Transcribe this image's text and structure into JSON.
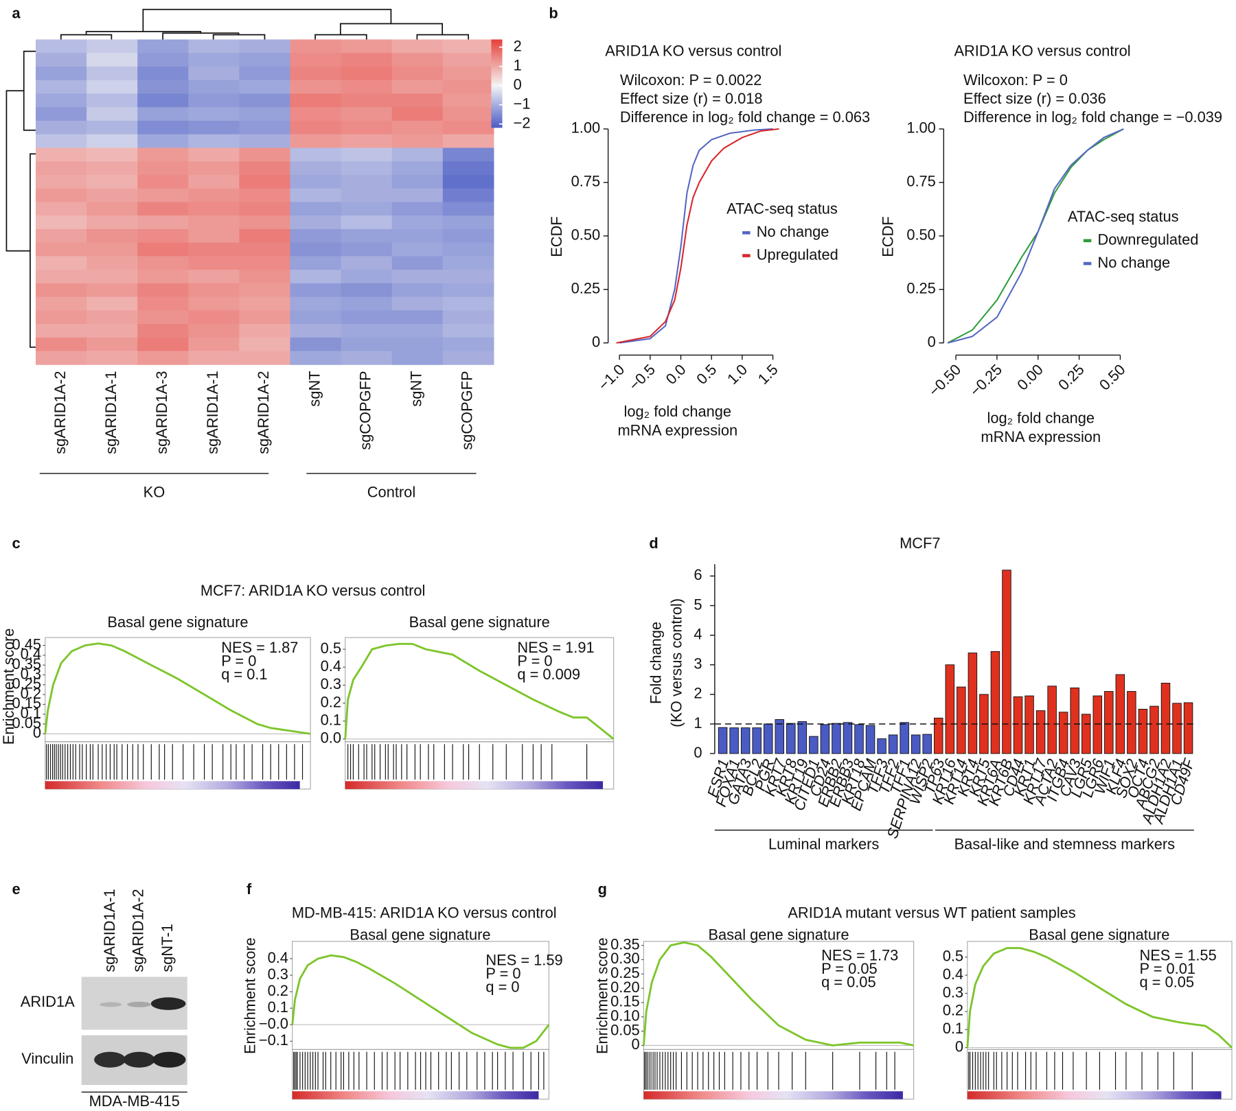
{
  "chart_data": [
    {
      "type": "heatmap",
      "panel": "a",
      "categories": [
        "sgARID1A-2",
        "sgARID1A-1",
        "sgARID1A-3",
        "sgARID1A-1",
        "sgARID1A-2",
        "sgNT",
        "sgCOPGFP",
        "sgNT",
        "sgCOPGFP"
      ],
      "groups": [
        "KO",
        "Control"
      ],
      "colorscale": [
        "#4a5bc4",
        "#f4f4f4",
        "#e6403a"
      ],
      "clim": [
        -2.2,
        2.4
      ],
      "cticks": [
        2,
        1,
        0,
        {
          "value": -1,
          "label": "−1"
        },
        {
          "value": -2,
          "label": "−2"
        }
      ],
      "values": [
        [
          -0.8,
          -0.6,
          -1.2,
          -0.9,
          -1.0,
          1.3,
          1.2,
          1.0,
          0.9
        ],
        [
          -1.0,
          -0.4,
          -1.3,
          -1.1,
          -1.2,
          1.4,
          1.5,
          1.3,
          1.1
        ],
        [
          -1.2,
          -0.7,
          -1.5,
          -1.0,
          -1.3,
          1.5,
          1.6,
          1.4,
          1.2
        ],
        [
          -0.9,
          -0.5,
          -1.4,
          -1.2,
          -1.1,
          1.3,
          1.4,
          1.2,
          1.3
        ],
        [
          -1.1,
          -0.8,
          -1.6,
          -1.3,
          -1.4,
          1.6,
          1.5,
          1.5,
          1.2
        ],
        [
          -1.3,
          -0.6,
          -1.2,
          -1.1,
          -1.2,
          1.4,
          1.3,
          1.6,
          1.3
        ],
        [
          -1.0,
          -0.9,
          -1.5,
          -1.4,
          -1.3,
          1.5,
          1.4,
          1.3,
          1.4
        ],
        [
          -0.7,
          -0.5,
          -1.1,
          -0.9,
          -1.0,
          1.2,
          1.1,
          1.2,
          1.0
        ],
        [
          0.9,
          0.8,
          1.2,
          1.0,
          1.3,
          -0.8,
          -0.7,
          -0.9,
          -1.6
        ],
        [
          1.1,
          1.0,
          1.3,
          1.2,
          1.5,
          -1.0,
          -0.9,
          -1.1,
          -1.8
        ],
        [
          1.0,
          0.9,
          1.4,
          1.1,
          1.6,
          -1.1,
          -1.0,
          -1.2,
          -1.9
        ],
        [
          1.2,
          1.1,
          1.2,
          1.3,
          1.4,
          -0.9,
          -1.0,
          -1.0,
          -1.7
        ],
        [
          1.0,
          1.2,
          1.5,
          1.4,
          1.5,
          -1.2,
          -1.1,
          -1.3,
          -1.5
        ],
        [
          0.8,
          1.0,
          1.1,
          1.2,
          1.3,
          -1.0,
          -0.8,
          -1.1,
          -1.2
        ],
        [
          1.1,
          1.3,
          1.4,
          1.2,
          1.6,
          -1.3,
          -1.2,
          -1.2,
          -1.3
        ],
        [
          1.2,
          1.2,
          1.6,
          1.5,
          1.5,
          -1.4,
          -1.3,
          -1.1,
          -1.2
        ],
        [
          0.9,
          1.1,
          1.3,
          1.4,
          1.4,
          -1.2,
          -1.0,
          -1.3,
          -1.1
        ],
        [
          1.0,
          1.0,
          1.2,
          1.1,
          1.3,
          -0.9,
          -1.1,
          -1.0,
          -1.0
        ],
        [
          1.3,
          1.2,
          1.5,
          1.3,
          1.2,
          -1.3,
          -1.4,
          -1.2,
          -1.1
        ],
        [
          1.1,
          0.9,
          1.4,
          1.2,
          1.1,
          -1.1,
          -1.2,
          -1.0,
          -0.9
        ],
        [
          1.2,
          1.1,
          1.3,
          1.4,
          1.2,
          -1.2,
          -1.3,
          -1.3,
          -1.0
        ],
        [
          1.0,
          1.0,
          1.5,
          1.3,
          1.0,
          -1.0,
          -1.1,
          -1.1,
          -0.9
        ],
        [
          1.4,
          1.2,
          1.6,
          1.2,
          0.9,
          -1.4,
          -1.2,
          -1.2,
          -1.1
        ],
        [
          1.1,
          1.0,
          1.2,
          1.0,
          1.0,
          -1.1,
          -1.0,
          -1.2,
          -1.0
        ]
      ]
    },
    {
      "type": "line",
      "panel": "b",
      "title": "ARID1A KO versus control",
      "annotations": [
        "Wilcoxon: P = 0.0022",
        "Effect size (r) = 0.018",
        "Difference in log₂ fold change = 0.063"
      ],
      "xlabel": [
        "log₂ fold change",
        "mRNA expression"
      ],
      "ylabel": "ECDF",
      "legend_title": "ATAC-seq status",
      "xlim": [
        -1.12,
        1.62
      ],
      "ylim": [
        -0.02,
        1.02
      ],
      "xticks": [
        {
          "value": -1,
          "label": "−1.0"
        },
        {
          "value": -0.5,
          "label": "−0.5"
        },
        {
          "value": 0,
          "label": "0.0"
        },
        0.5,
        {
          "value": 1,
          "label": "1.0"
        },
        1.5
      ],
      "yticks": [
        0,
        0.25,
        {
          "value": 0.5,
          "label": "0.50"
        },
        0.75,
        {
          "value": 1,
          "label": "1.00"
        }
      ],
      "series": [
        {
          "name": "No change",
          "color": "#5566c4",
          "x": [
            -1.0,
            -0.5,
            -0.25,
            -0.1,
            0,
            0.1,
            0.2,
            0.3,
            0.5,
            0.8,
            1.2,
            1.5
          ],
          "values": [
            0,
            0.02,
            0.08,
            0.25,
            0.45,
            0.7,
            0.83,
            0.9,
            0.95,
            0.98,
            0.995,
            1.0
          ]
        },
        {
          "name": "Upregulated",
          "color": "#d7262b",
          "x": [
            -1.05,
            -0.5,
            -0.25,
            -0.1,
            0,
            0.1,
            0.2,
            0.3,
            0.5,
            0.7,
            1.0,
            1.3,
            1.6
          ],
          "values": [
            0,
            0.03,
            0.1,
            0.2,
            0.35,
            0.55,
            0.68,
            0.75,
            0.85,
            0.91,
            0.96,
            0.99,
            1.0
          ]
        }
      ]
    },
    {
      "type": "line",
      "title": "ARID1A KO versus control",
      "annotations": [
        "Wilcoxon: P = 0",
        "Effect size (r) = 0.036",
        "Difference in log₂ fold change = −0.039"
      ],
      "xlabel": [
        "log₂ fold change",
        "mRNA expression"
      ],
      "ylabel": "ECDF",
      "legend_title": "ATAC-seq status",
      "xlim": [
        -0.55,
        0.55
      ],
      "ylim": [
        -0.02,
        1.02
      ],
      "xticks": [
        {
          "value": -0.5,
          "label": "−0.50"
        },
        {
          "value": -0.25,
          "label": "−0.25"
        },
        {
          "value": 0,
          "label": "0.00"
        },
        0.25,
        {
          "value": 0.5,
          "label": "0.50"
        }
      ],
      "yticks": [
        0,
        0.25,
        {
          "value": 0.5,
          "label": "0.50"
        },
        0.75,
        {
          "value": 1,
          "label": "1.00"
        }
      ],
      "series": [
        {
          "name": "Downregulated",
          "color": "#2e9e3a",
          "x": [
            -0.55,
            -0.4,
            -0.25,
            -0.1,
            0,
            0.1,
            0.2,
            0.3,
            0.4,
            0.52
          ],
          "values": [
            0,
            0.06,
            0.2,
            0.4,
            0.52,
            0.7,
            0.82,
            0.9,
            0.95,
            1.0
          ]
        },
        {
          "name": "No change",
          "color": "#5566c4",
          "x": [
            -0.55,
            -0.4,
            -0.25,
            -0.1,
            0,
            0.1,
            0.2,
            0.3,
            0.4,
            0.52
          ],
          "values": [
            0,
            0.03,
            0.12,
            0.33,
            0.52,
            0.72,
            0.83,
            0.9,
            0.96,
            1.0
          ]
        }
      ]
    },
    {
      "type": "gsea",
      "panel": "c",
      "title": "MCF7: ARID1A KO versus control",
      "subtitle": "Basal gene signature",
      "ylabel": "Enrichment score",
      "stats": [
        "NES = 1.87",
        "P = 0",
        "q = 0.1"
      ],
      "color": "#7dc52b",
      "xlim": [
        0,
        1
      ],
      "ylim": [
        -0.04,
        0.49
      ],
      "yticks": [
        0,
        0.05,
        0.1,
        0.15,
        0.2,
        0.25,
        0.3,
        0.35,
        0.4,
        0.45
      ],
      "x": [
        0,
        0.01,
        0.03,
        0.06,
        0.1,
        0.15,
        0.2,
        0.25,
        0.3,
        0.4,
        0.5,
        0.6,
        0.7,
        0.8,
        0.85,
        0.9,
        0.95,
        1.0
      ],
      "values": [
        0,
        0.12,
        0.25,
        0.36,
        0.42,
        0.45,
        0.46,
        0.45,
        0.42,
        0.35,
        0.28,
        0.2,
        0.12,
        0.05,
        0.03,
        0.02,
        0.01,
        0
      ],
      "hits": [
        0.005,
        0.012,
        0.02,
        0.028,
        0.035,
        0.042,
        0.05,
        0.058,
        0.066,
        0.075,
        0.085,
        0.095,
        0.105,
        0.115,
        0.13,
        0.14,
        0.155,
        0.17,
        0.18,
        0.2,
        0.215,
        0.23,
        0.245,
        0.26,
        0.27,
        0.29,
        0.31,
        0.33,
        0.35,
        0.37,
        0.4,
        0.43,
        0.45,
        0.48,
        0.52,
        0.56,
        0.6,
        0.63,
        0.67,
        0.7,
        0.72,
        0.75,
        0.78,
        0.82,
        0.85,
        0.88,
        0.91,
        0.94,
        0.97
      ]
    },
    {
      "type": "gsea",
      "subtitle": "Basal gene signature",
      "stats": [
        "NES = 1.91",
        "P = 0",
        "q = 0.009"
      ],
      "color": "#7dc52b",
      "xlim": [
        0,
        1
      ],
      "ylim": [
        -0.015,
        0.565
      ],
      "yticks": [
        {
          "value": 0,
          "label": "0.0"
        },
        0.1,
        0.2,
        0.3,
        0.4,
        0.5
      ],
      "x": [
        0,
        0.01,
        0.03,
        0.06,
        0.1,
        0.15,
        0.2,
        0.25,
        0.3,
        0.4,
        0.5,
        0.6,
        0.7,
        0.8,
        0.85,
        0.9,
        0.95,
        1.0
      ],
      "values": [
        0,
        0.22,
        0.33,
        0.4,
        0.5,
        0.52,
        0.53,
        0.53,
        0.5,
        0.47,
        0.38,
        0.3,
        0.22,
        0.15,
        0.12,
        0.12,
        0.06,
        0
      ],
      "hits": [
        0.01,
        0.02,
        0.03,
        0.05,
        0.07,
        0.08,
        0.1,
        0.11,
        0.13,
        0.15,
        0.16,
        0.18,
        0.19,
        0.21,
        0.23,
        0.26,
        0.28,
        0.31,
        0.33,
        0.37,
        0.4,
        0.44,
        0.46,
        0.5,
        0.55,
        0.6,
        0.66,
        0.7,
        0.73,
        0.77,
        0.9
      ]
    },
    {
      "type": "bar",
      "panel": "d",
      "title": "MCF7",
      "ylabel": [
        "Fold change",
        "(KO versus control)"
      ],
      "ylim": [
        0,
        6.4
      ],
      "yticks": [
        0,
        1,
        2,
        3,
        4,
        5,
        6
      ],
      "reference_line": 1,
      "groups": [
        {
          "name": "Luminal markers",
          "color": "#4a5bc4",
          "categories": [
            "ESR1",
            "FOXA1",
            "GATA3",
            "BCL2",
            "PGR",
            "KRT7",
            "KRT8",
            "KRT19",
            "CITED1",
            "CD24",
            "ERBB2",
            "ERBB3",
            "KRT18",
            "EPCAM",
            "TFF3",
            "TFF2",
            "TFF1",
            "SERPINA12",
            "WISP2"
          ],
          "values": [
            0.88,
            0.87,
            0.87,
            0.87,
            1.0,
            1.15,
            1.02,
            1.08,
            0.58,
            0.98,
            1.02,
            1.05,
            0.98,
            0.95,
            0.5,
            0.63,
            1.05,
            0.63,
            0.65
          ]
        },
        {
          "name": "Basal-like and stemness markers",
          "color": "#e0311f",
          "categories": [
            "TP63",
            "KRT16",
            "KRT14",
            "KRT4",
            "KRT5",
            "KRT6A",
            "KRT6B",
            "CD44",
            "KRT1",
            "KRT17",
            "ACTA2",
            "ITGB4",
            "CAV3",
            "LGR5",
            "LGR6",
            "WIF1",
            "KLF4",
            "SOX2",
            "OCT4",
            "ABCG2",
            "ALDH1A2",
            "ALDH1A1",
            "CD49F"
          ],
          "values": [
            1.2,
            3.0,
            2.25,
            3.4,
            2.0,
            3.45,
            6.2,
            1.92,
            1.95,
            1.45,
            2.28,
            1.4,
            2.22,
            1.33,
            1.95,
            2.1,
            2.67,
            2.1,
            1.5,
            1.6,
            2.38,
            1.7,
            1.72
          ]
        }
      ]
    },
    {
      "type": "gsea",
      "panel": "f",
      "title": "MD-MB-415: ARID1A KO versus control",
      "subtitle": "Basal gene signature",
      "ylabel": "Enrichment score",
      "stats": [
        "NES = 1.59",
        "P = 0",
        "q = 0"
      ],
      "color": "#7dc52b",
      "xlim": [
        0,
        1
      ],
      "ylim": [
        -0.15,
        0.505
      ],
      "yticks": [
        {
          "value": -0.1,
          "label": "−0.1"
        },
        {
          "value": 0,
          "label": "−0.0"
        },
        0.1,
        0.2,
        0.3,
        0.4
      ],
      "x": [
        0,
        0.01,
        0.03,
        0.06,
        0.1,
        0.15,
        0.2,
        0.25,
        0.3,
        0.4,
        0.5,
        0.6,
        0.7,
        0.8,
        0.85,
        0.9,
        0.95,
        1.0
      ],
      "values": [
        0,
        0.15,
        0.28,
        0.36,
        0.4,
        0.42,
        0.41,
        0.38,
        0.34,
        0.25,
        0.15,
        0.05,
        -0.05,
        -0.12,
        -0.14,
        -0.14,
        -0.1,
        0.0
      ],
      "hits": [
        0.005,
        0.01,
        0.015,
        0.02,
        0.03,
        0.04,
        0.05,
        0.06,
        0.07,
        0.08,
        0.09,
        0.1,
        0.12,
        0.13,
        0.15,
        0.17,
        0.19,
        0.2,
        0.22,
        0.24,
        0.26,
        0.29,
        0.32,
        0.35,
        0.37,
        0.4,
        0.42,
        0.45,
        0.48,
        0.5,
        0.52,
        0.54,
        0.57,
        0.6,
        0.62,
        0.65,
        0.68,
        0.72,
        0.75,
        0.78,
        0.8,
        0.83,
        0.86,
        0.9,
        0.93,
        0.96,
        0.98
      ]
    },
    {
      "type": "gsea",
      "panel": "g",
      "title": "ARID1A mutant versus WT patient samples",
      "subtitle": "Basal gene signature",
      "ylabel": "Enrichment score",
      "stats": [
        "NES = 1.73",
        "P = 0.05",
        "q = 0.05"
      ],
      "color": "#7dc52b",
      "xlim": [
        0,
        1
      ],
      "ylim": [
        -0.014,
        0.364
      ],
      "yticks": [
        0,
        0.05,
        {
          "value": 0.1,
          "label": "0.10"
        },
        0.15,
        {
          "value": 0.2,
          "label": "0.20"
        },
        0.25,
        {
          "value": 0.3,
          "label": "0.30"
        },
        0.35
      ],
      "x": [
        0,
        0.01,
        0.03,
        0.06,
        0.1,
        0.15,
        0.2,
        0.25,
        0.3,
        0.4,
        0.5,
        0.6,
        0.7,
        0.8,
        0.85,
        0.9,
        0.95,
        1.0
      ],
      "values": [
        0,
        0.12,
        0.22,
        0.3,
        0.35,
        0.36,
        0.35,
        0.31,
        0.26,
        0.16,
        0.07,
        0.02,
        0,
        0.01,
        0.01,
        0.01,
        0.01,
        0
      ],
      "hits": [
        0.003,
        0.008,
        0.013,
        0.02,
        0.027,
        0.035,
        0.042,
        0.05,
        0.06,
        0.07,
        0.08,
        0.09,
        0.1,
        0.11,
        0.12,
        0.14,
        0.16,
        0.18,
        0.2,
        0.22,
        0.24,
        0.26,
        0.28,
        0.3,
        0.33,
        0.36,
        0.39,
        0.42,
        0.46,
        0.5,
        0.55,
        0.6,
        0.7,
        0.8,
        0.86,
        0.9,
        0.93
      ]
    },
    {
      "type": "gsea",
      "subtitle": "Basal gene signature",
      "stats": [
        "NES = 1.55",
        "P = 0.01",
        "q = 0.05"
      ],
      "color": "#7dc52b",
      "xlim": [
        0,
        1
      ],
      "ylim": [
        -0.01,
        0.587
      ],
      "yticks": [
        0,
        0.1,
        0.2,
        0.3,
        0.4,
        0.5
      ],
      "x": [
        0,
        0.01,
        0.03,
        0.06,
        0.1,
        0.15,
        0.2,
        0.25,
        0.3,
        0.4,
        0.5,
        0.6,
        0.7,
        0.8,
        0.85,
        0.9,
        0.95,
        1.0
      ],
      "values": [
        0,
        0.2,
        0.35,
        0.45,
        0.52,
        0.55,
        0.55,
        0.53,
        0.5,
        0.42,
        0.33,
        0.24,
        0.17,
        0.14,
        0.13,
        0.12,
        0.07,
        0
      ],
      "hits": [
        0.005,
        0.01,
        0.02,
        0.03,
        0.04,
        0.05,
        0.06,
        0.07,
        0.08,
        0.1,
        0.11,
        0.13,
        0.15,
        0.17,
        0.19,
        0.22,
        0.24,
        0.26,
        0.3,
        0.33,
        0.36,
        0.4,
        0.45,
        0.5,
        0.56,
        0.6,
        0.66,
        0.72,
        0.78,
        0.85
      ]
    }
  ],
  "blot": {
    "panel": "e",
    "lanes": [
      "sgARID1A-1",
      "sgARID1A-2",
      "sgNT-1"
    ],
    "bands": [
      "ARID1A",
      "Vinculin"
    ],
    "cell_line": "MDA-MB-415"
  }
}
